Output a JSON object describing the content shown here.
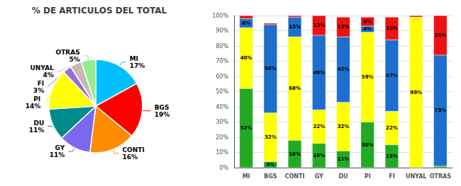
{
  "chart_data": [
    {
      "type": "pie",
      "title": "% DE ARTICULOS DEL TOTAL",
      "categories": [
        "MI",
        "BGS",
        "CONTI",
        "GY",
        "DU",
        "PI",
        "FI",
        "UNYAL",
        "OTRAS"
      ],
      "values": [
        17,
        19,
        16,
        11,
        11,
        14,
        3,
        4,
        5
      ],
      "value_labels": [
        "17%",
        "19%",
        "16%",
        "11%",
        "11%",
        "14%",
        "3%",
        "4%",
        "5%"
      ],
      "colors": [
        "#00BFFF",
        "#FF0000",
        "#FF8C00",
        "#7B68EE",
        "#008B8B",
        "#FFFF00",
        "#9370DB",
        "#C9B8B8",
        "#90EE90"
      ],
      "data_labels": true
    },
    {
      "type": "bar",
      "categories": [
        "MI",
        "BGS",
        "CONTI",
        "GY",
        "DU",
        "PI",
        "FI",
        "UNYAL",
        "OTRAS"
      ],
      "series": [
        {
          "color": "#22AA22",
          "values": [
            52,
            4,
            18,
            16,
            11,
            30,
            15,
            0,
            1
          ],
          "value_labels": [
            "52%",
            "4%",
            "18%",
            "16%",
            "11%",
            "30%",
            "15%",
            null,
            null
          ]
        },
        {
          "color": "#FFFF00",
          "values": [
            40,
            32,
            68,
            22,
            32,
            59,
            22,
            99,
            0
          ],
          "value_labels": [
            "40%",
            "32%",
            "68%",
            "22%",
            "32%",
            "59%",
            "22%",
            "99%",
            null
          ]
        },
        {
          "color": "#1E6FCC",
          "values": [
            6,
            58,
            13,
            49,
            43,
            4,
            47,
            0,
            73
          ],
          "value_labels": [
            "6%",
            "58%",
            "13%",
            "49%",
            "43%",
            "4%",
            "47%",
            null,
            "73%"
          ]
        },
        {
          "color": "#EE1111",
          "values": [
            2,
            1,
            1,
            13,
            13,
            6,
            15,
            1,
            26
          ],
          "value_labels": [
            null,
            null,
            null,
            "13%",
            "13%",
            "6%",
            "15%",
            null,
            "26%"
          ]
        }
      ],
      "stacked": true,
      "data_labels": true,
      "ylim": [
        0,
        100
      ],
      "yticks": [
        {
          "value": 0,
          "label": "0%"
        },
        {
          "value": 10,
          "label": "10%"
        },
        {
          "value": 20,
          "label": "20%"
        },
        {
          "value": 30,
          "label": "30%"
        },
        {
          "value": 40,
          "label": "40%"
        },
        {
          "value": 50,
          "label": "50%"
        },
        {
          "value": 60,
          "label": "60%"
        },
        {
          "value": 70,
          "label": "70%"
        },
        {
          "value": 80,
          "label": "80%"
        },
        {
          "value": 90,
          "label": "90%"
        },
        {
          "value": 100,
          "label": "100%"
        }
      ],
      "grid": true
    }
  ]
}
